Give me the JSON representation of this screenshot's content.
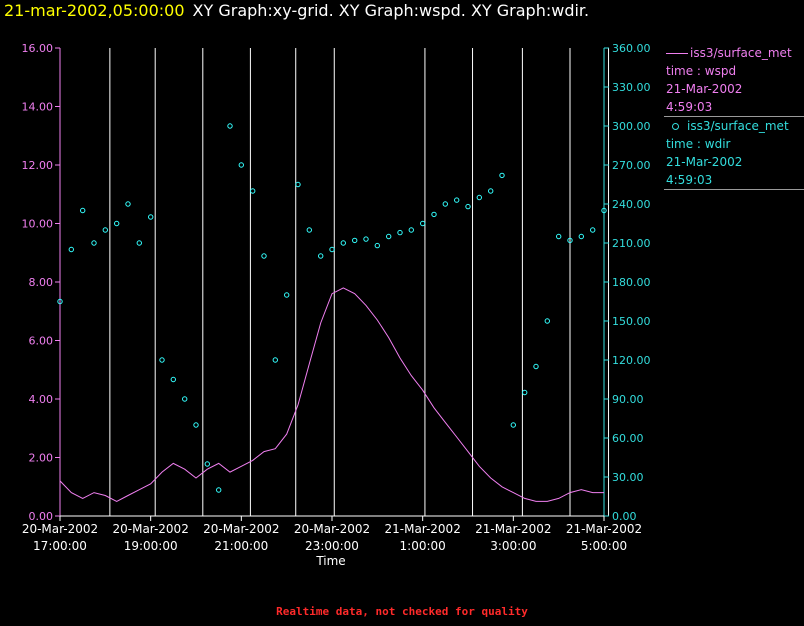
{
  "title": {
    "time": "21-mar-2002,05:00:00",
    "text": "XY Graph:xy-grid.  XY Graph:wspd.  XY Graph:wdir."
  },
  "footer_note": "Realtime data, not checked for quality",
  "legend": {
    "wspd": {
      "name": "iss3/surface_met",
      "field": "time : wspd",
      "date": "21-Mar-2002",
      "time": "4:59:03"
    },
    "wdir": {
      "name": "iss3/surface_met",
      "field": "time : wdir",
      "date": "21-Mar-2002",
      "time": "4:59:03"
    }
  },
  "colors": {
    "wspd": "#f07ff0",
    "wdir": "#33ffff",
    "grid": "#ffffff",
    "axis_left": "#f07ff0",
    "axis_right": "#33dddd",
    "text": "#ffffff"
  },
  "chart_data": {
    "type": "scatter",
    "xlabel": "Time",
    "x_range_hours": [
      0,
      12
    ],
    "x_ticks": [
      {
        "h": 0,
        "date": "20-Mar-2002",
        "time": "17:00:00"
      },
      {
        "h": 2,
        "date": "20-Mar-2002",
        "time": "19:00:00"
      },
      {
        "h": 4,
        "date": "20-Mar-2002",
        "time": "21:00:00"
      },
      {
        "h": 6,
        "date": "20-Mar-2002",
        "time": "23:00:00"
      },
      {
        "h": 8,
        "date": "21-Mar-2002",
        "time": "1:00:00"
      },
      {
        "h": 10,
        "date": "21-Mar-2002",
        "time": "3:00:00"
      },
      {
        "h": 12,
        "date": "21-Mar-2002",
        "time": "5:00:00"
      }
    ],
    "grid_hours": [
      1.1,
      2.1,
      3.15,
      4.2,
      5.2,
      6.05,
      8.05,
      9.1,
      10.2,
      11.25,
      12.1
    ],
    "y_left": {
      "label": "wspd",
      "range": [
        0,
        16
      ],
      "ticks": [
        "0.00",
        "2.00",
        "4.00",
        "6.00",
        "8.00",
        "10.00",
        "12.00",
        "14.00",
        "16.00"
      ]
    },
    "y_right": {
      "label": "wdir",
      "range": [
        0,
        360
      ],
      "ticks": [
        "0.00",
        "30.00",
        "60.00",
        "90.00",
        "120.00",
        "150.00",
        "180.00",
        "210.00",
        "240.00",
        "270.00",
        "300.00",
        "330.00",
        "360.00"
      ]
    },
    "series": [
      {
        "name": "wspd",
        "type": "line",
        "axis": "left",
        "x": [
          0.0,
          0.25,
          0.5,
          0.75,
          1.0,
          1.25,
          1.5,
          1.75,
          2.0,
          2.25,
          2.5,
          2.75,
          3.0,
          3.25,
          3.5,
          3.75,
          4.0,
          4.25,
          4.5,
          4.75,
          5.0,
          5.25,
          5.5,
          5.75,
          6.0,
          6.25,
          6.5,
          6.75,
          7.0,
          7.25,
          7.5,
          7.75,
          8.0,
          8.25,
          8.5,
          8.75,
          9.0,
          9.25,
          9.5,
          9.75,
          10.0,
          10.25,
          10.5,
          10.75,
          11.0,
          11.25,
          11.5,
          11.75,
          12.0
        ],
        "y": [
          1.2,
          0.8,
          0.6,
          0.8,
          0.7,
          0.5,
          0.7,
          0.9,
          1.1,
          1.5,
          1.8,
          1.6,
          1.3,
          1.6,
          1.8,
          1.5,
          1.7,
          1.9,
          2.2,
          2.3,
          2.8,
          3.8,
          5.2,
          6.6,
          7.6,
          7.8,
          7.6,
          7.2,
          6.7,
          6.1,
          5.4,
          4.8,
          4.3,
          3.7,
          3.2,
          2.7,
          2.2,
          1.7,
          1.3,
          1.0,
          0.8,
          0.6,
          0.5,
          0.5,
          0.6,
          0.8,
          0.9,
          0.8,
          0.8
        ]
      },
      {
        "name": "wdir",
        "type": "scatter",
        "axis": "right",
        "x": [
          0.0,
          0.25,
          0.5,
          0.75,
          1.0,
          1.25,
          1.5,
          1.75,
          2.0,
          2.25,
          2.5,
          2.75,
          3.0,
          3.25,
          3.5,
          3.75,
          4.0,
          4.25,
          4.5,
          4.75,
          5.0,
          5.25,
          5.5,
          5.75,
          6.0,
          6.25,
          6.5,
          6.75,
          7.0,
          7.25,
          7.5,
          7.75,
          8.0,
          8.25,
          8.5,
          8.75,
          9.0,
          9.25,
          9.5,
          9.75,
          10.0,
          10.25,
          10.5,
          10.75,
          11.0,
          11.25,
          11.5,
          11.75,
          12.0
        ],
        "y": [
          165,
          205,
          235,
          210,
          220,
          225,
          240,
          210,
          230,
          120,
          105,
          90,
          70,
          40,
          20,
          300,
          270,
          250,
          200,
          120,
          170,
          255,
          220,
          200,
          205,
          210,
          212,
          213,
          208,
          215,
          218,
          220,
          225,
          232,
          240,
          243,
          238,
          245,
          250,
          262,
          70,
          95,
          115,
          150,
          215,
          212,
          215,
          220,
          235
        ]
      }
    ]
  }
}
